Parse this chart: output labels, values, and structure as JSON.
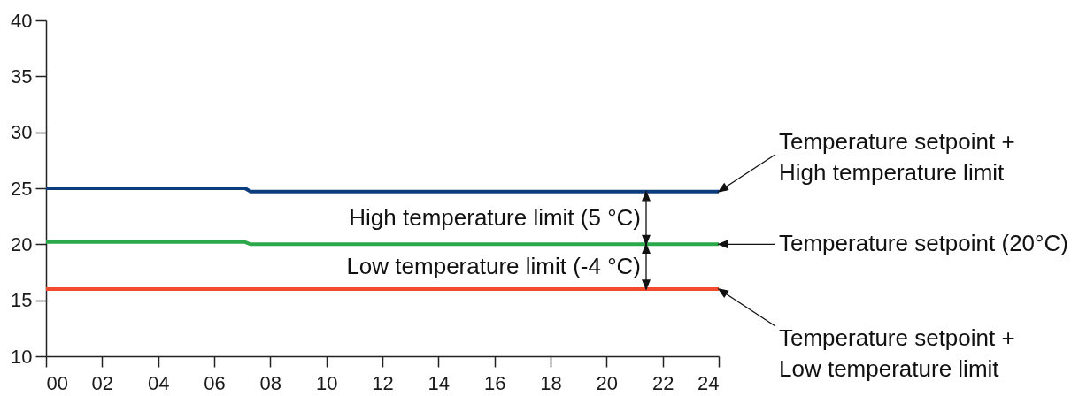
{
  "chart_data": {
    "type": "line",
    "series": [
      {
        "name": "Temperature setpoint +\nHigh temperature limit",
        "color": "#0b3d7e",
        "x": [
          0,
          7.1,
          7.3,
          24
        ],
        "values": [
          25,
          25,
          24.7,
          24.7
        ]
      },
      {
        "name": "Temperature setpoint (20°C)",
        "color": "#2ba84a",
        "x": [
          0,
          7.1,
          7.3,
          24
        ],
        "values": [
          20.2,
          20.2,
          20,
          20
        ]
      },
      {
        "name": "Temperature setpoint +\nLow temperature limit",
        "color": "#f24a2c",
        "x": [
          0,
          24
        ],
        "values": [
          16,
          16
        ]
      }
    ],
    "xlim": [
      0,
      24
    ],
    "ylim": [
      10,
      40
    ],
    "xticks": [
      {
        "value": 0,
        "label": "00"
      },
      {
        "value": 2,
        "label": "02"
      },
      {
        "value": 4,
        "label": "04"
      },
      {
        "value": 6,
        "label": "06"
      },
      {
        "value": 8,
        "label": "08"
      },
      10,
      12,
      14,
      16,
      18,
      20,
      22,
      24
    ],
    "yticks": [
      10,
      15,
      20,
      25,
      30,
      35,
      40
    ],
    "annotations": [
      "High temperature limit (5 °C)",
      "Low temperature limit (-4 °C)"
    ]
  }
}
